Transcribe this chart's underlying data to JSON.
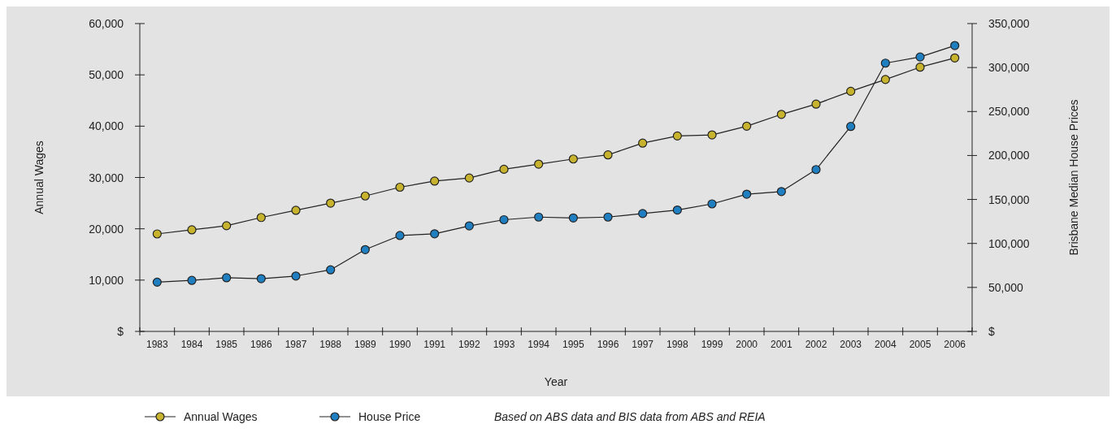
{
  "chart_data": {
    "type": "line",
    "xlabel": "Year",
    "ylabel": "Annual Wages",
    "y2label": "Brisbane Median House Prices",
    "categories": [
      "1983",
      "1984",
      "1985",
      "1986",
      "1987",
      "1988",
      "1989",
      "1990",
      "1991",
      "1992",
      "1993",
      "1994",
      "1995",
      "1996",
      "1997",
      "1998",
      "1999",
      "2000",
      "2001",
      "2002",
      "2003",
      "2004",
      "2005",
      "2006"
    ],
    "series": [
      {
        "name": "Annual Wages",
        "color": "#c8b32e",
        "values": [
          19000,
          19800,
          20600,
          22200,
          23600,
          25000,
          26400,
          28100,
          29300,
          29900,
          31600,
          32600,
          33600,
          34400,
          36700,
          38100,
          38300,
          40000,
          42300,
          44300,
          46800,
          49100,
          51500,
          53300
        ]
      },
      {
        "name": "House Price",
        "color": "#1f7fc1",
        "axis": "y2",
        "values": [
          56000,
          58000,
          61000,
          60000,
          63000,
          70000,
          93000,
          109000,
          111000,
          120000,
          127000,
          130000,
          129000,
          130000,
          134000,
          138000,
          145000,
          156000,
          159000,
          184000,
          233000,
          305000,
          312000,
          325000
        ]
      }
    ],
    "ylim": [
      0,
      60000
    ],
    "yticks": [
      {
        "value": 0,
        "label": "$"
      },
      {
        "value": 10000,
        "label": "10,000"
      },
      {
        "value": 20000,
        "label": "20,000"
      },
      {
        "value": 30000,
        "label": "30,000"
      },
      {
        "value": 40000,
        "label": "40,000"
      },
      {
        "value": 50000,
        "label": "50,000"
      },
      {
        "value": 60000,
        "label": "60,000"
      }
    ],
    "y2lim": [
      0,
      350000
    ],
    "y2ticks": [
      {
        "value": 0,
        "label": "$"
      },
      {
        "value": 50000,
        "label": "50,000"
      },
      {
        "value": 100000,
        "label": "100,000"
      },
      {
        "value": 150000,
        "label": "150,000"
      },
      {
        "value": 200000,
        "label": "200,000"
      },
      {
        "value": 250000,
        "label": "250,000"
      },
      {
        "value": 300000,
        "label": "300,000"
      },
      {
        "value": 350000,
        "label": "350,000"
      }
    ],
    "marker": "circle",
    "line_style": "solid",
    "legend": "bottom",
    "annotations": [
      "Based on ABS data and BIS data from ABS and REIA"
    ]
  }
}
